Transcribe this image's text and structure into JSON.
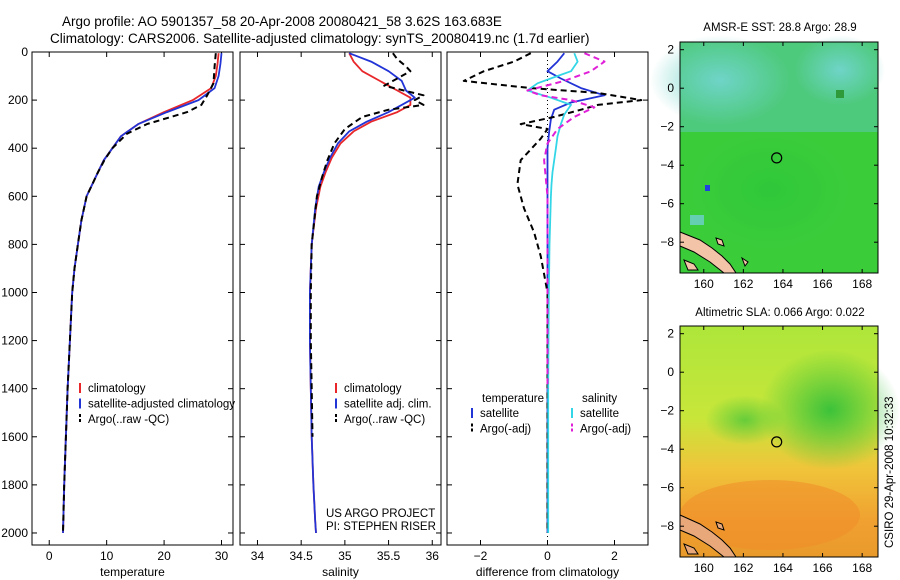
{
  "title": {
    "line1": "Argo profile: AO 5901357_58 20-Apr-2008 20080421_58 3.62S 163.683E",
    "line2": "Climatology: CARS2006. Satellite-adjusted climatology: synTS_20080419.nc (1.7d earlier)"
  },
  "side_label": "CSIRO 29-Apr-2008 10:32:33",
  "colors": {
    "climatology": "#e8272a",
    "satellite": "#2234d6",
    "argo": "#000000",
    "sal_satellite": "#33d6e6",
    "sal_argo": "#e020d8"
  },
  "chart_data": [
    {
      "type": "line",
      "xlabel": "temperature",
      "ylabel": "",
      "xlim": [
        -3,
        32
      ],
      "ylim": [
        2050,
        0
      ],
      "xticks": [
        0,
        10,
        20,
        30
      ],
      "yticks": [
        0,
        200,
        400,
        600,
        800,
        1000,
        1200,
        1400,
        1600,
        1800,
        2000
      ],
      "legend": {
        "placement": "lower-middle",
        "entries": [
          "climatology",
          "satellite-adjusted climatology",
          "Argo(..raw -QC)"
        ]
      },
      "series": [
        {
          "name": "climatology",
          "color": "climatology",
          "dash": false,
          "x": [
            29.5,
            29.3,
            29.0,
            28.2,
            25.0,
            20.0,
            15.5,
            12.5,
            11.0,
            9.5,
            8.5,
            7.5,
            6.5,
            5.6,
            5.0,
            4.4,
            4.0,
            3.6,
            3.2,
            2.9,
            2.6,
            2.4
          ],
          "y": [
            5,
            50,
            100,
            150,
            200,
            250,
            300,
            350,
            400,
            450,
            500,
            550,
            600,
            700,
            800,
            900,
            1000,
            1200,
            1400,
            1600,
            1800,
            2000
          ]
        },
        {
          "name": "satellite-adjusted climatology",
          "color": "satellite",
          "dash": false,
          "x": [
            30.0,
            29.8,
            29.5,
            28.8,
            26.0,
            20.5,
            15.5,
            12.5,
            11.0,
            9.5,
            8.5,
            7.5,
            6.5,
            5.6,
            5.0,
            4.4,
            4.0,
            3.6,
            3.2,
            2.9,
            2.6,
            2.4
          ],
          "y": [
            5,
            50,
            100,
            150,
            200,
            250,
            300,
            350,
            400,
            450,
            500,
            550,
            600,
            700,
            800,
            900,
            1000,
            1200,
            1400,
            1600,
            1800,
            2000
          ]
        },
        {
          "name": "Argo(..raw -QC)",
          "color": "argo",
          "dash": true,
          "x": [
            29.0,
            28.8,
            28.6,
            27.5,
            26.5,
            24.0,
            17.0,
            13.5,
            11.0,
            9.6,
            8.5,
            7.5,
            6.5,
            5.6,
            5.0,
            4.4,
            4.0,
            3.6,
            3.2,
            2.9,
            2.6,
            2.4
          ],
          "y": [
            5,
            60,
            130,
            180,
            220,
            250,
            300,
            340,
            400,
            450,
            500,
            550,
            600,
            700,
            800,
            900,
            1000,
            1200,
            1400,
            1600,
            1800,
            2000
          ]
        }
      ]
    },
    {
      "type": "line",
      "xlabel": "salinity",
      "ylabel": "",
      "xlim": [
        33.8,
        36.1
      ],
      "ylim": [
        2050,
        0
      ],
      "xticks": [
        34,
        34.5,
        35,
        35.5,
        36
      ],
      "yticks": [
        0,
        200,
        400,
        600,
        800,
        1000,
        1200,
        1400,
        1600,
        1800,
        2000
      ],
      "legend": {
        "placement": "lower-middle",
        "entries": [
          "climatology",
          "satellite adj. clim.",
          "Argo(..raw -QC)"
        ]
      },
      "annotations": [
        "US ARGO PROJECT",
        "PI: STEPHEN RISER"
      ],
      "series": [
        {
          "name": "climatology",
          "color": "climatology",
          "dash": false,
          "x": [
            35.05,
            35.1,
            35.2,
            35.4,
            35.6,
            35.75,
            35.75,
            35.6,
            35.3,
            35.1,
            34.95,
            34.85,
            34.78,
            34.72,
            34.67,
            34.62,
            34.6,
            34.6,
            34.61,
            34.62,
            34.64,
            34.66,
            34.67
          ],
          "y": [
            5,
            40,
            80,
            120,
            160,
            190,
            220,
            250,
            290,
            330,
            380,
            440,
            500,
            560,
            650,
            800,
            1000,
            1200,
            1400,
            1600,
            1800,
            1950,
            2000
          ]
        },
        {
          "name": "satellite adj. clim.",
          "color": "satellite",
          "dash": false,
          "x": [
            35.05,
            35.3,
            35.5,
            35.65,
            35.7,
            35.8,
            35.65,
            35.5,
            35.25,
            35.05,
            34.92,
            34.83,
            34.76,
            34.7,
            34.66,
            34.62,
            34.6,
            34.6,
            34.61,
            34.62,
            34.64,
            34.66,
            34.67
          ],
          "y": [
            5,
            40,
            80,
            120,
            160,
            190,
            220,
            250,
            290,
            330,
            380,
            440,
            500,
            560,
            650,
            800,
            1000,
            1200,
            1400,
            1600,
            1800,
            1950,
            2000
          ]
        },
        {
          "name": "Argo(..raw -QC)",
          "color": "argo",
          "dash": true,
          "x": [
            35.55,
            35.6,
            35.7,
            35.75,
            35.6,
            35.45,
            35.9,
            35.8,
            35.9,
            35.5,
            35.2,
            35.0,
            34.88,
            34.8,
            34.74,
            34.68,
            34.65,
            34.62,
            34.61,
            34.61,
            34.62,
            34.63
          ],
          "y": [
            5,
            30,
            60,
            80,
            110,
            140,
            180,
            200,
            220,
            240,
            270,
            320,
            380,
            450,
            520,
            600,
            700,
            800,
            1000,
            1200,
            1400,
            1600
          ]
        }
      ]
    },
    {
      "type": "line",
      "xlabel": "difference from climatology",
      "ylabel": "",
      "xlim": [
        -3.0,
        3.0
      ],
      "ylim": [
        2050,
        0
      ],
      "xticks": [
        -2,
        0,
        2
      ],
      "yticks": [
        0,
        200,
        400,
        600,
        800,
        1000,
        1200,
        1400,
        1600,
        1800,
        2000
      ],
      "legend": {
        "placement": "lower-middle",
        "columns": [
          "temperature",
          "salinity"
        ],
        "entries": [
          "satellite",
          "Argo(-adj)",
          "satellite",
          "Argo(-adj)"
        ]
      },
      "series": [
        {
          "name": "satellite",
          "group": "temperature",
          "color": "satellite",
          "dash": false,
          "x": [
            0.5,
            0.3,
            0.0,
            0.4,
            1.0,
            1.7,
            0.7,
            0.2,
            0.1,
            0.05,
            0.0,
            0.0,
            0.0,
            0.0,
            0.0,
            0.0,
            0.0,
            0.0,
            0.0,
            0.0,
            0.0
          ],
          "y": [
            5,
            40,
            80,
            110,
            150,
            180,
            210,
            240,
            280,
            330,
            400,
            500,
            600,
            800,
            1000,
            1200,
            1400,
            1600,
            1800,
            1900,
            2000
          ]
        },
        {
          "name": "Argo(-adj)",
          "group": "temperature",
          "color": "argo",
          "dash": true,
          "x": [
            -0.5,
            -1.0,
            -1.9,
            -2.5,
            -0.5,
            1.5,
            2.8,
            1.5,
            1.0,
            0.2,
            -0.8,
            0.0,
            -0.2,
            -0.8,
            -0.9,
            -0.7,
            -0.4,
            -0.2,
            0.0,
            0.0,
            0.0,
            0.0,
            0.0,
            0.0,
            0.0
          ],
          "y": [
            5,
            40,
            80,
            120,
            150,
            170,
            200,
            220,
            240,
            270,
            300,
            320,
            360,
            450,
            550,
            650,
            750,
            850,
            1000,
            1200,
            1400,
            1600,
            1800,
            1900,
            2000
          ]
        },
        {
          "name": "satellite",
          "group": "salinity",
          "color": "sal_satellite",
          "dash": false,
          "x": [
            0.8,
            0.9,
            0.7,
            0.3,
            -0.3,
            -0.6,
            0.1,
            0.7,
            0.5,
            0.4,
            0.3,
            0.25,
            0.2,
            0.15,
            0.12,
            0.1,
            0.08,
            0.06,
            0.05,
            0.04,
            0.03,
            0.02,
            0.02,
            0.02,
            0.02
          ],
          "y": [
            5,
            40,
            80,
            100,
            130,
            160,
            190,
            220,
            260,
            300,
            350,
            400,
            450,
            500,
            550,
            600,
            700,
            800,
            900,
            1000,
            1200,
            1400,
            1600,
            1800,
            2000
          ]
        },
        {
          "name": "Argo(-adj)",
          "group": "salinity",
          "color": "sal_argo",
          "dash": true,
          "x": [
            1.1,
            1.7,
            1.3,
            0.5,
            -0.6,
            -0.2,
            0.7,
            1.4,
            0.8,
            0.3,
            0.0,
            -0.1,
            0.0,
            0.0,
            0.0,
            0.0,
            0.0
          ],
          "y": [
            5,
            40,
            80,
            120,
            160,
            180,
            200,
            230,
            270,
            320,
            380,
            450,
            600,
            800,
            1000,
            1200,
            1400
          ]
        }
      ]
    },
    {
      "type": "heatmap",
      "title": "AMSR-E SST: 28.8 Argo: 28.9",
      "xlim": [
        158.8,
        168.8
      ],
      "ylim": [
        -9.6,
        2.4
      ],
      "xticks": [
        160,
        162,
        164,
        166,
        168
      ],
      "yticks": [
        2,
        0,
        -2,
        -4,
        -6,
        -8
      ],
      "marker": {
        "lon": 163.683,
        "lat": -3.62
      }
    },
    {
      "type": "heatmap",
      "title": "Altimetric SLA: 0.066 Argo: 0.022",
      "xlim": [
        158.8,
        168.8
      ],
      "ylim": [
        -9.6,
        2.4
      ],
      "xticks": [
        160,
        162,
        164,
        166,
        168
      ],
      "yticks": [
        2,
        0,
        -2,
        -4,
        -6,
        -8
      ],
      "marker": {
        "lon": 163.683,
        "lat": -3.62
      }
    }
  ]
}
